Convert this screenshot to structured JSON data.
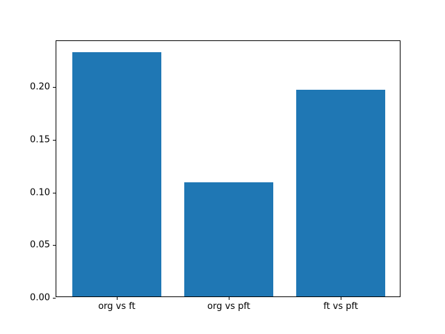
{
  "chart_data": {
    "type": "bar",
    "categories": [
      "org vs ft",
      "org vs pft",
      "ft vs pft"
    ],
    "values": [
      0.232,
      0.108,
      0.196
    ],
    "title": "",
    "xlabel": "",
    "ylabel": "",
    "ylim": [
      0,
      0.2436
    ],
    "yticks": [
      0.0,
      0.05,
      0.1,
      0.15,
      0.2
    ],
    "ytick_labels": [
      "0.00",
      "0.05",
      "0.10",
      "0.15",
      "0.20"
    ],
    "bar_color": "#1f77b4",
    "axis_color": "#000000",
    "background_color": "#ffffff",
    "bar_width_fraction": 0.8,
    "grid": false,
    "legend_position": "none"
  }
}
